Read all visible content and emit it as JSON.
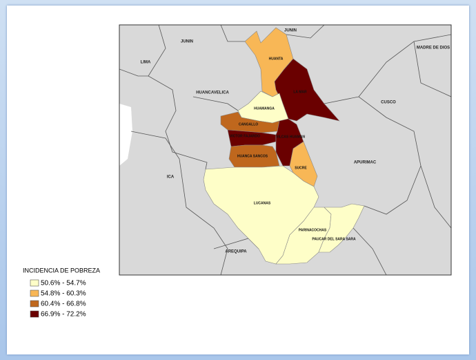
{
  "map": {
    "department_labels": [
      "JUNIN",
      "JUNIN",
      "LIMA",
      "HUANCAVELICA",
      "CUSCO",
      "MADRE DE DIOS",
      "APURIMAC",
      "ICA",
      "AREQUIPA"
    ],
    "province_labels": [
      "HUANTA",
      "LA MAR",
      "HUAMANGA",
      "CANGALLO",
      "VICTOR FAJARDO",
      "VILCAS HUAMAN",
      "HUANCA SANCOS",
      "SUCRE",
      "LUCANAS",
      "PARINACOCHAS",
      "PAUCAR DEL SARA SARA"
    ],
    "legend": {
      "title": "INCIDENCIA DE POBREZA",
      "items": [
        {
          "label": "50.6% - 54.7%",
          "color": "#fefec8"
        },
        {
          "label": "54.8% - 60.3%",
          "color": "#f8b756"
        },
        {
          "label": "60.4% - 66.8%",
          "color": "#bf671d"
        },
        {
          "label": "66.9% - 72.2%",
          "color": "#6a0000"
        }
      ]
    }
  }
}
